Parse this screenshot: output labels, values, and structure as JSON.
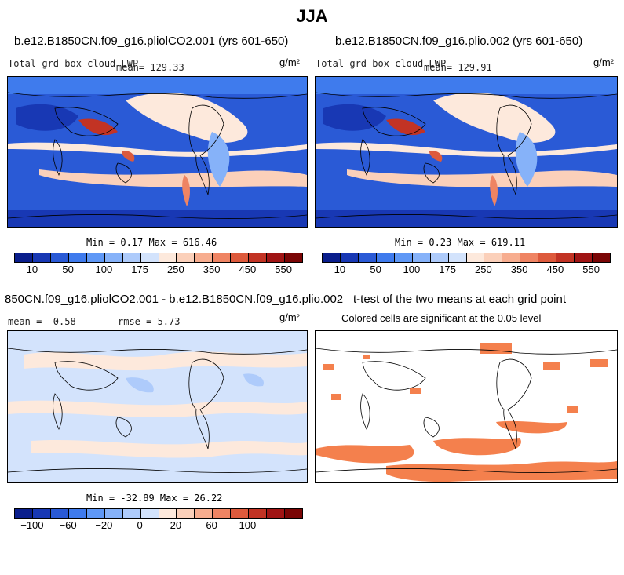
{
  "title": "JJA",
  "colors": {
    "ocean_low": "#1f47c9",
    "ocean_mid": "#8fb6ff",
    "ocean_high": "#fcd4c0",
    "peak": "#c21f1b",
    "sig": "#f4804d",
    "diff_bg": "#cfe0ff",
    "diff_warm": "#fde0cc"
  },
  "chart_data": [
    {
      "type": "heatmap",
      "title": "b.e12.B1850CN.f09_g16.pliolCO2.001 (yrs 601-650)",
      "variable": "Total grd-box cloud LWP",
      "mean_label": "mean= 129.33",
      "units": "g/m²",
      "minmax_label": "Min =   0.17 Max = 616.46",
      "min": 0.17,
      "max": 616.46,
      "mean": 129.33,
      "colorbar": {
        "colors": [
          "#0a1e8c",
          "#1838b4",
          "#2a5ad6",
          "#3f7bed",
          "#5f98f6",
          "#86b2f9",
          "#aecbfb",
          "#d3e3fc",
          "#fde9dc",
          "#fbd0ba",
          "#f7ad8f",
          "#ef8463",
          "#dd5a3c",
          "#c23324",
          "#a01414",
          "#7a0505"
        ],
        "tick_labels": [
          "10",
          "50",
          "100",
          "175",
          "250",
          "350",
          "450",
          "550"
        ]
      }
    },
    {
      "type": "heatmap",
      "title": "b.e12.B1850CN.f09_g16.plio.002 (yrs 601-650)",
      "variable": "Total grd-box cloud LWP",
      "mean_label": "mean= 129.91",
      "units": "g/m²",
      "minmax_label": "Min =   0.23 Max = 619.11",
      "min": 0.23,
      "max": 619.11,
      "mean": 129.91,
      "colorbar": {
        "colors": [
          "#0a1e8c",
          "#1838b4",
          "#2a5ad6",
          "#3f7bed",
          "#5f98f6",
          "#86b2f9",
          "#aecbfb",
          "#d3e3fc",
          "#fde9dc",
          "#fbd0ba",
          "#f7ad8f",
          "#ef8463",
          "#dd5a3c",
          "#c23324",
          "#a01414",
          "#7a0505"
        ],
        "tick_labels": [
          "10",
          "50",
          "100",
          "175",
          "250",
          "350",
          "450",
          "550"
        ]
      }
    },
    {
      "type": "heatmap",
      "title": "850CN.f09_g16.pliolCO2.001 - b.e12.B1850CN.f09_g16.plio.002",
      "mean_label": "mean =  -0.58",
      "rmse_label": "rmse =   5.73",
      "units": "g/m²",
      "minmax_label": "Min = -32.89 Max =  26.22",
      "min": -32.89,
      "max": 26.22,
      "mean": -0.58,
      "rmse": 5.73,
      "colorbar": {
        "colors": [
          "#0a1e8c",
          "#1838b4",
          "#2a5ad6",
          "#3f7bed",
          "#5f98f6",
          "#86b2f9",
          "#aecbfb",
          "#d3e3fc",
          "#fde9dc",
          "#fbd0ba",
          "#f7ad8f",
          "#ef8463",
          "#dd5a3c",
          "#c23324",
          "#a01414",
          "#7a0505"
        ],
        "tick_labels": [
          "−100",
          "−60",
          "−20",
          "0",
          "20",
          "60",
          "100"
        ]
      }
    },
    {
      "type": "heatmap",
      "title": "t-test of the two means at each grid point",
      "subtitle": "Colored cells are significant at the 0.05 level"
    }
  ]
}
